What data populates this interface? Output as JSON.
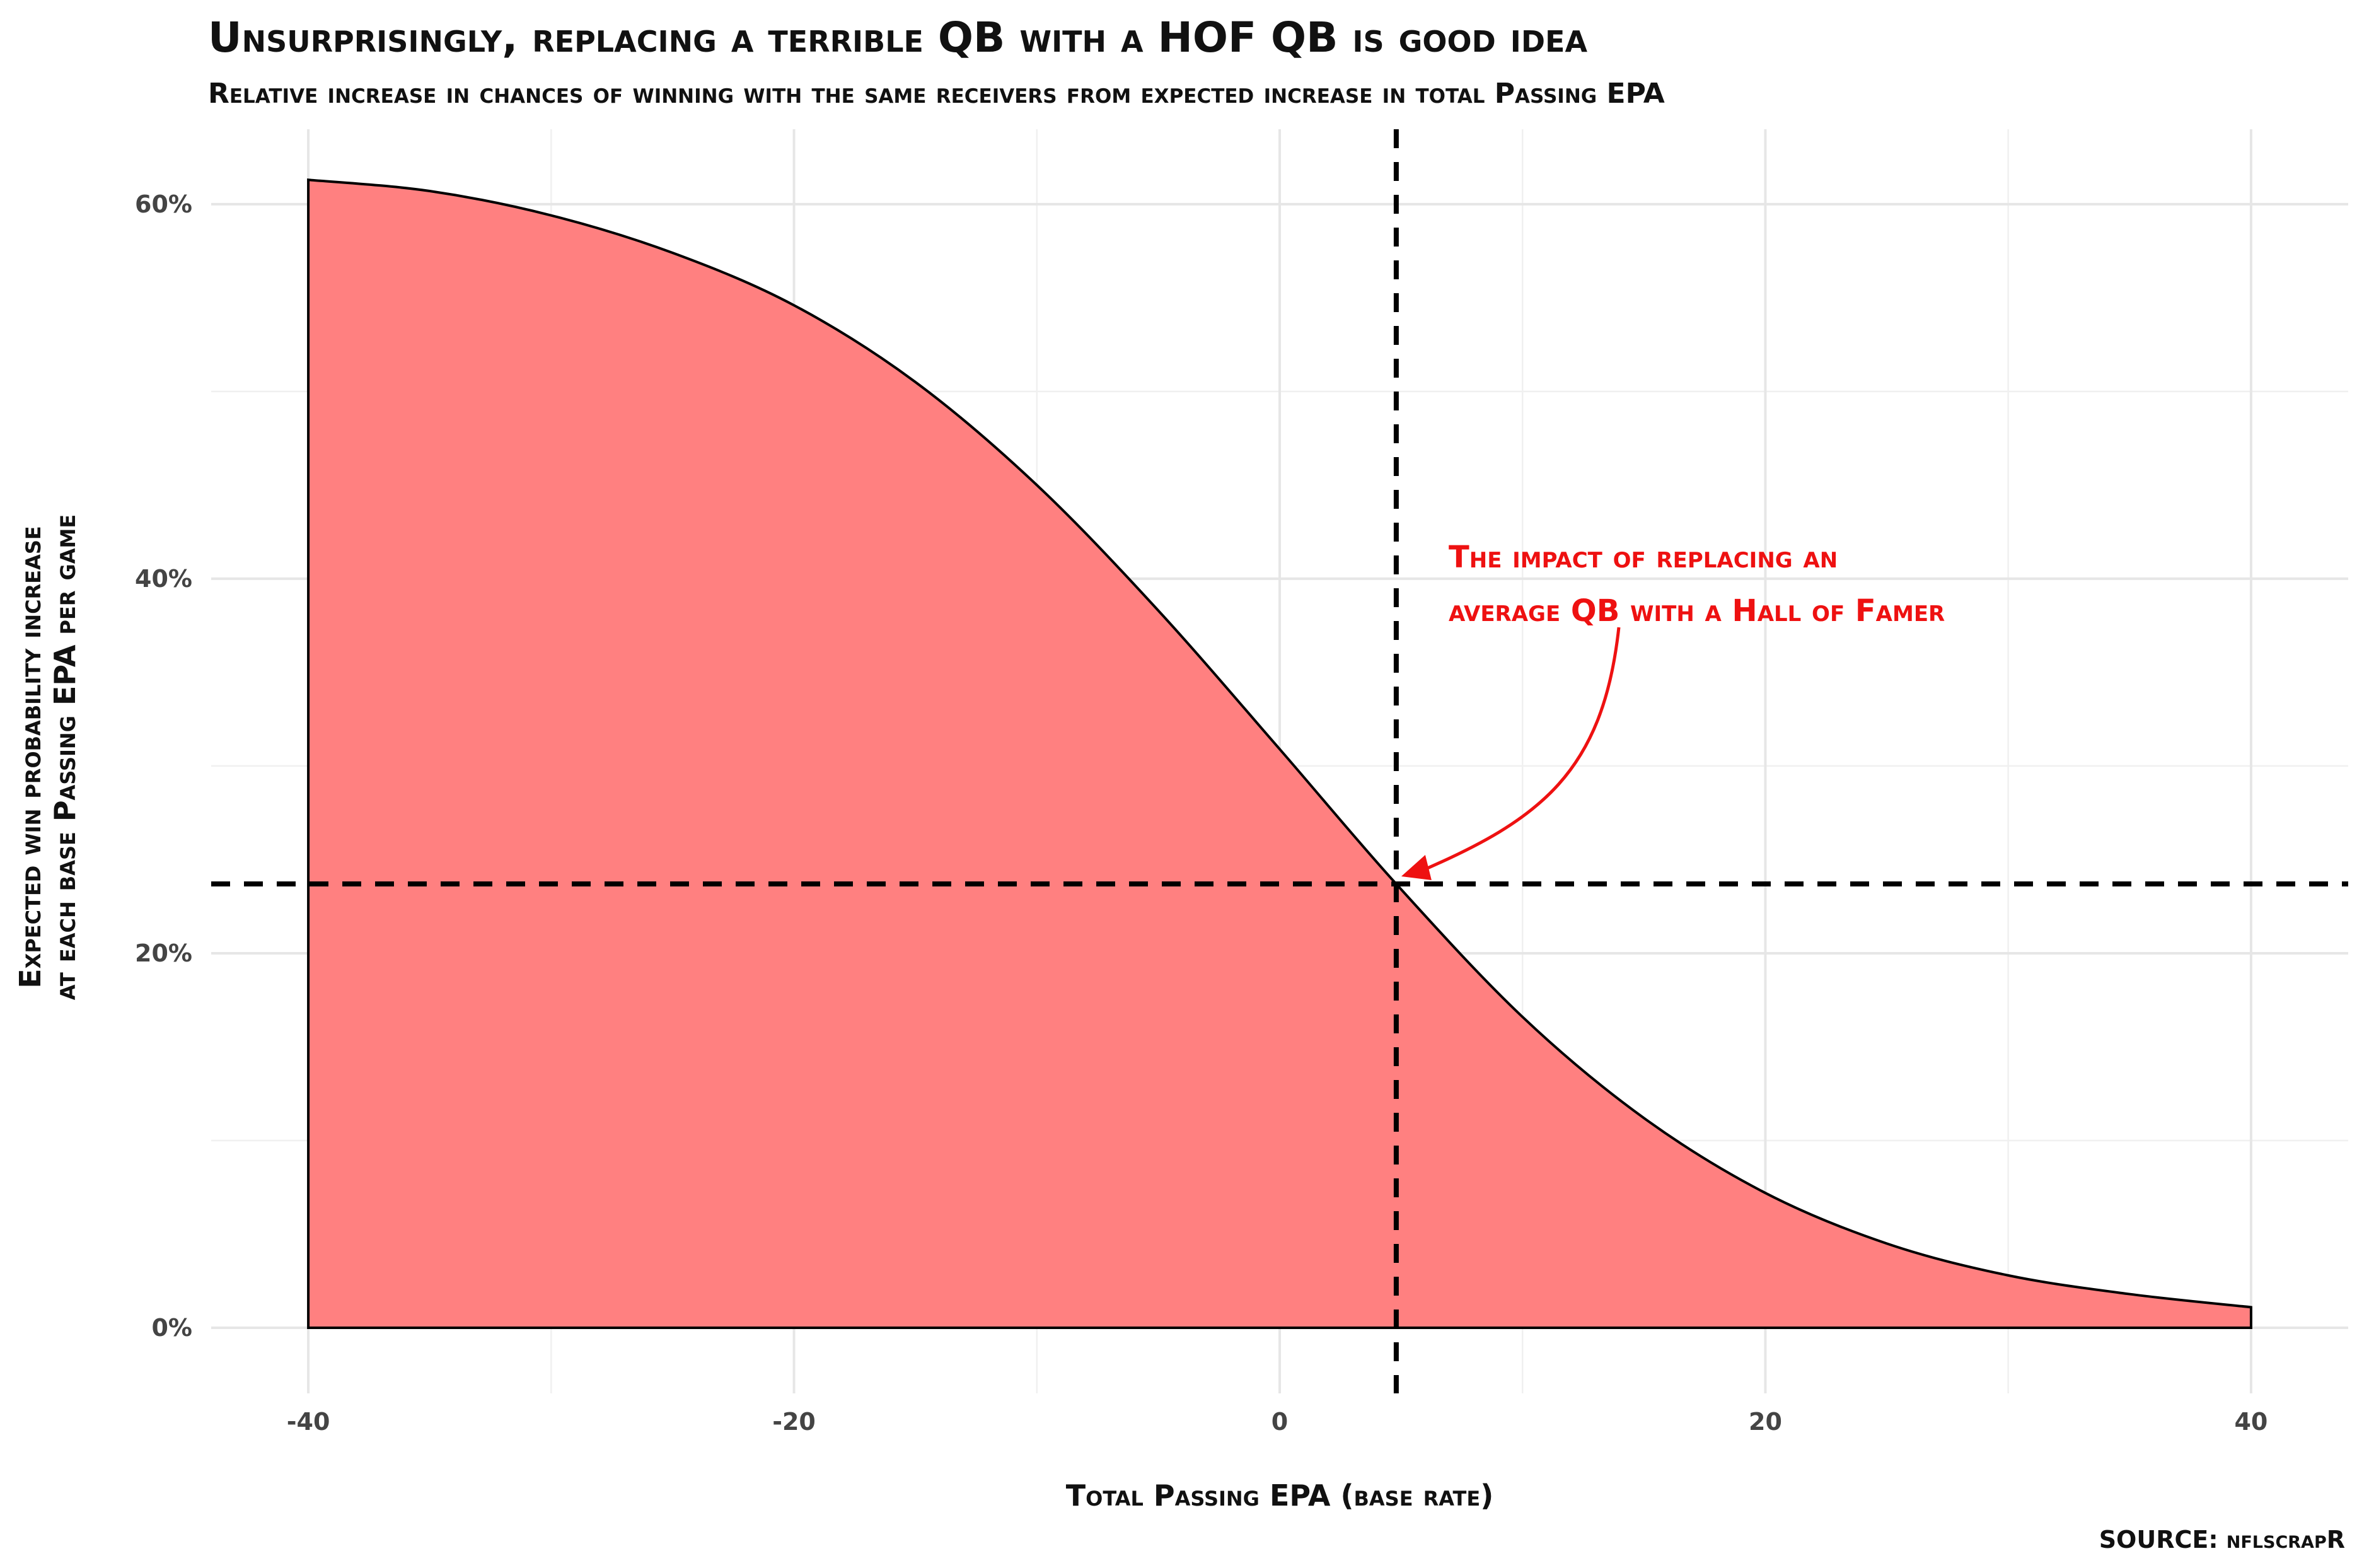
{
  "chart_data": {
    "type": "area",
    "title": "Unsurprisingly, replacing a terrible QB with a HOF QB is good idea",
    "subtitle": "Relative increase in chances of winning with the same receivers from expected increase in total Passing EPA",
    "xlabel": "Total Passing EPA (base rate)",
    "ylabel_lines": [
      "Expected win probability increase",
      "at each base Passing EPA per game"
    ],
    "caption": "SOURCE: nflscrapR",
    "xlim": [
      -44,
      44
    ],
    "ylim": [
      -3.5,
      64
    ],
    "x_ticks": [
      -40,
      -20,
      0,
      20,
      40
    ],
    "x_tick_labels": [
      "-40",
      "-20",
      "0",
      "20",
      "40"
    ],
    "y_ticks": [
      0,
      20,
      40,
      60
    ],
    "y_tick_labels": [
      "0%",
      "20%",
      "40%",
      "60%"
    ],
    "grid": true,
    "fill_color": "#ff8080",
    "line_color": "#000000",
    "x": [
      -40,
      -35,
      -30,
      -25,
      -20,
      -15,
      -10,
      -5,
      0,
      4.8,
      10,
      15,
      20,
      25,
      30,
      35,
      40
    ],
    "y": [
      61.3,
      60.7,
      59.4,
      57.4,
      54.6,
      50.5,
      45.0,
      38.3,
      30.9,
      23.7,
      16.6,
      11.2,
      7.2,
      4.5,
      2.8,
      1.8,
      1.1
    ],
    "reference_lines": {
      "vertical_x": 4.8,
      "horizontal_y": 23.7,
      "style": "dashed",
      "color": "#000000"
    },
    "annotation": {
      "lines": [
        "The impact of replacing an",
        "average QB with a Hall of Famer"
      ],
      "color": "#ee1111",
      "arrow_to": {
        "x": 4.8,
        "y": 23.7
      }
    }
  }
}
